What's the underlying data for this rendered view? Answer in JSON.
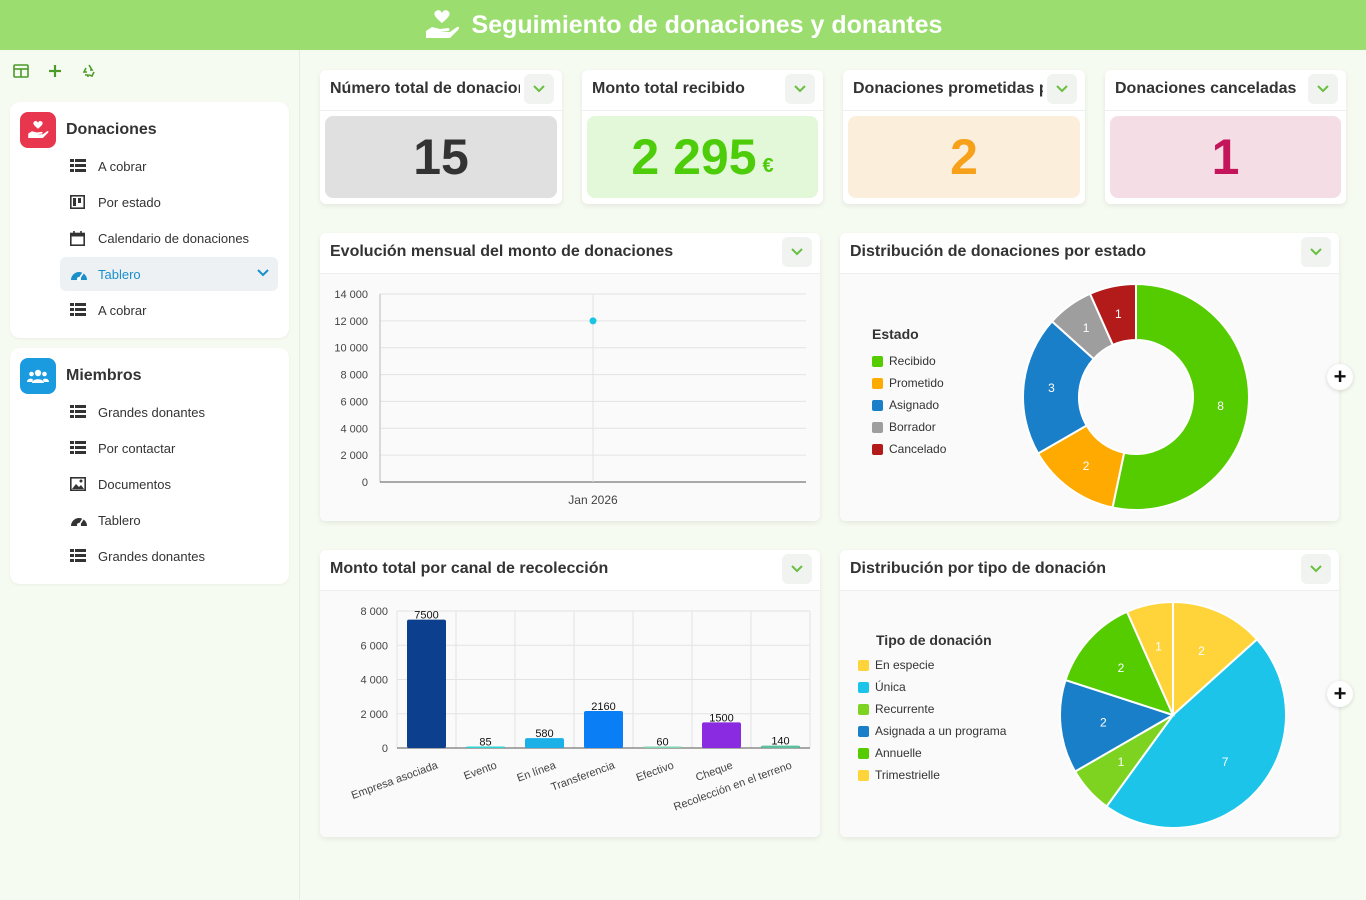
{
  "header": {
    "title": "Seguimiento de donaciones y donantes"
  },
  "sidebar": {
    "sections": [
      {
        "title": "Donaciones",
        "items": [
          {
            "label": "A cobrar",
            "icon": "table-icon"
          },
          {
            "label": "Por estado",
            "icon": "kanban-icon"
          },
          {
            "label": "Calendario de donaciones",
            "icon": "calendar-icon"
          },
          {
            "label": "Tablero",
            "icon": "dashboard-icon",
            "active": true
          },
          {
            "label": "A cobrar",
            "icon": "table-icon"
          }
        ]
      },
      {
        "title": "Miembros",
        "items": [
          {
            "label": "Grandes donantes",
            "icon": "table-icon"
          },
          {
            "label": "Por contactar",
            "icon": "table-icon"
          },
          {
            "label": "Documentos",
            "icon": "gallery-icon"
          },
          {
            "label": "Tablero",
            "icon": "dashboard-icon"
          },
          {
            "label": "Grandes donantes",
            "icon": "table-icon"
          }
        ]
      }
    ]
  },
  "kpis": [
    {
      "title": "Número total de donaciones",
      "value": "15",
      "unit": "",
      "color": "#333333",
      "bg": "#e0e0e0"
    },
    {
      "title": "Monto total recibido",
      "value": "2 295",
      "unit": "€",
      "color": "#4dcc0a",
      "bg": "#e3f7d9"
    },
    {
      "title": "Donaciones prometidas pendientes",
      "value": "2",
      "unit": "",
      "color": "#f7a11a",
      "bg": "#fbeedb"
    },
    {
      "title": "Donaciones canceladas",
      "value": "1",
      "unit": "",
      "color": "#c4145a",
      "bg": "#f5dde6"
    }
  ],
  "charts": {
    "monthly": {
      "title": "Evolución mensual del monto de donaciones"
    },
    "by_status": {
      "title": "Distribución de donaciones por estado",
      "legend_title": "Estado"
    },
    "by_channel": {
      "title": "Monto total por canal de recolección"
    },
    "by_type": {
      "title": "Distribución por tipo de donación",
      "legend_title": "Tipo de donación"
    }
  },
  "chart_data": [
    {
      "type": "line",
      "title": "Evolución mensual del monto de donaciones",
      "x": [
        "Jan 2026"
      ],
      "series": [
        {
          "values": [
            12000
          ],
          "color": "#1bc4e3"
        }
      ],
      "ylim": [
        0,
        14000
      ],
      "yticks": [
        "0",
        "2 000",
        "4 000",
        "6 000",
        "8 000",
        "10 000",
        "12 000",
        "14 000"
      ],
      "grid": true
    },
    {
      "type": "pie",
      "title": "Distribución de donaciones por estado",
      "donut": true,
      "categories": [
        "Recibido",
        "Prometido",
        "Asignado",
        "Borrador",
        "Cancelado"
      ],
      "values": [
        8,
        2,
        3,
        1,
        1
      ],
      "colors": [
        "#55cc00",
        "#ffaa00",
        "#1a7fc9",
        "#9e9e9e",
        "#b31b1b"
      ],
      "legend": "left"
    },
    {
      "type": "bar",
      "title": "Monto total por canal de recolección",
      "categories": [
        "Empresa asociada",
        "Evento",
        "En línea",
        "Transferencia",
        "Efectivo",
        "Cheque",
        "Recolección en el terreno"
      ],
      "values": [
        7500,
        85,
        580,
        2160,
        60,
        1500,
        140
      ],
      "value_labels": [
        "7500",
        "85",
        "580",
        "2160",
        "60",
        "1500",
        "140"
      ],
      "colors": [
        "#0d3f8f",
        "#2dd4d4",
        "#1bb0e8",
        "#0a7ff5",
        "#7fd6b0",
        "#8a2be2",
        "#5bc0a0"
      ],
      "ylim": [
        0,
        8000
      ],
      "yticks": [
        "0",
        "2 000",
        "4 000",
        "6 000",
        "8 000"
      ],
      "grid": true
    },
    {
      "type": "pie",
      "title": "Distribución por tipo de donación",
      "categories": [
        "En especie",
        "Única",
        "Recurrente",
        "Asignada a un programa",
        "Annuelle",
        "Trimestrielle"
      ],
      "values": [
        2,
        7,
        1,
        2,
        2,
        1
      ],
      "colors": [
        "#ffd43b",
        "#1bc4e8",
        "#7ed321",
        "#1a7fc9",
        "#55cc00",
        "#ffd43b"
      ],
      "legend": "left"
    }
  ]
}
